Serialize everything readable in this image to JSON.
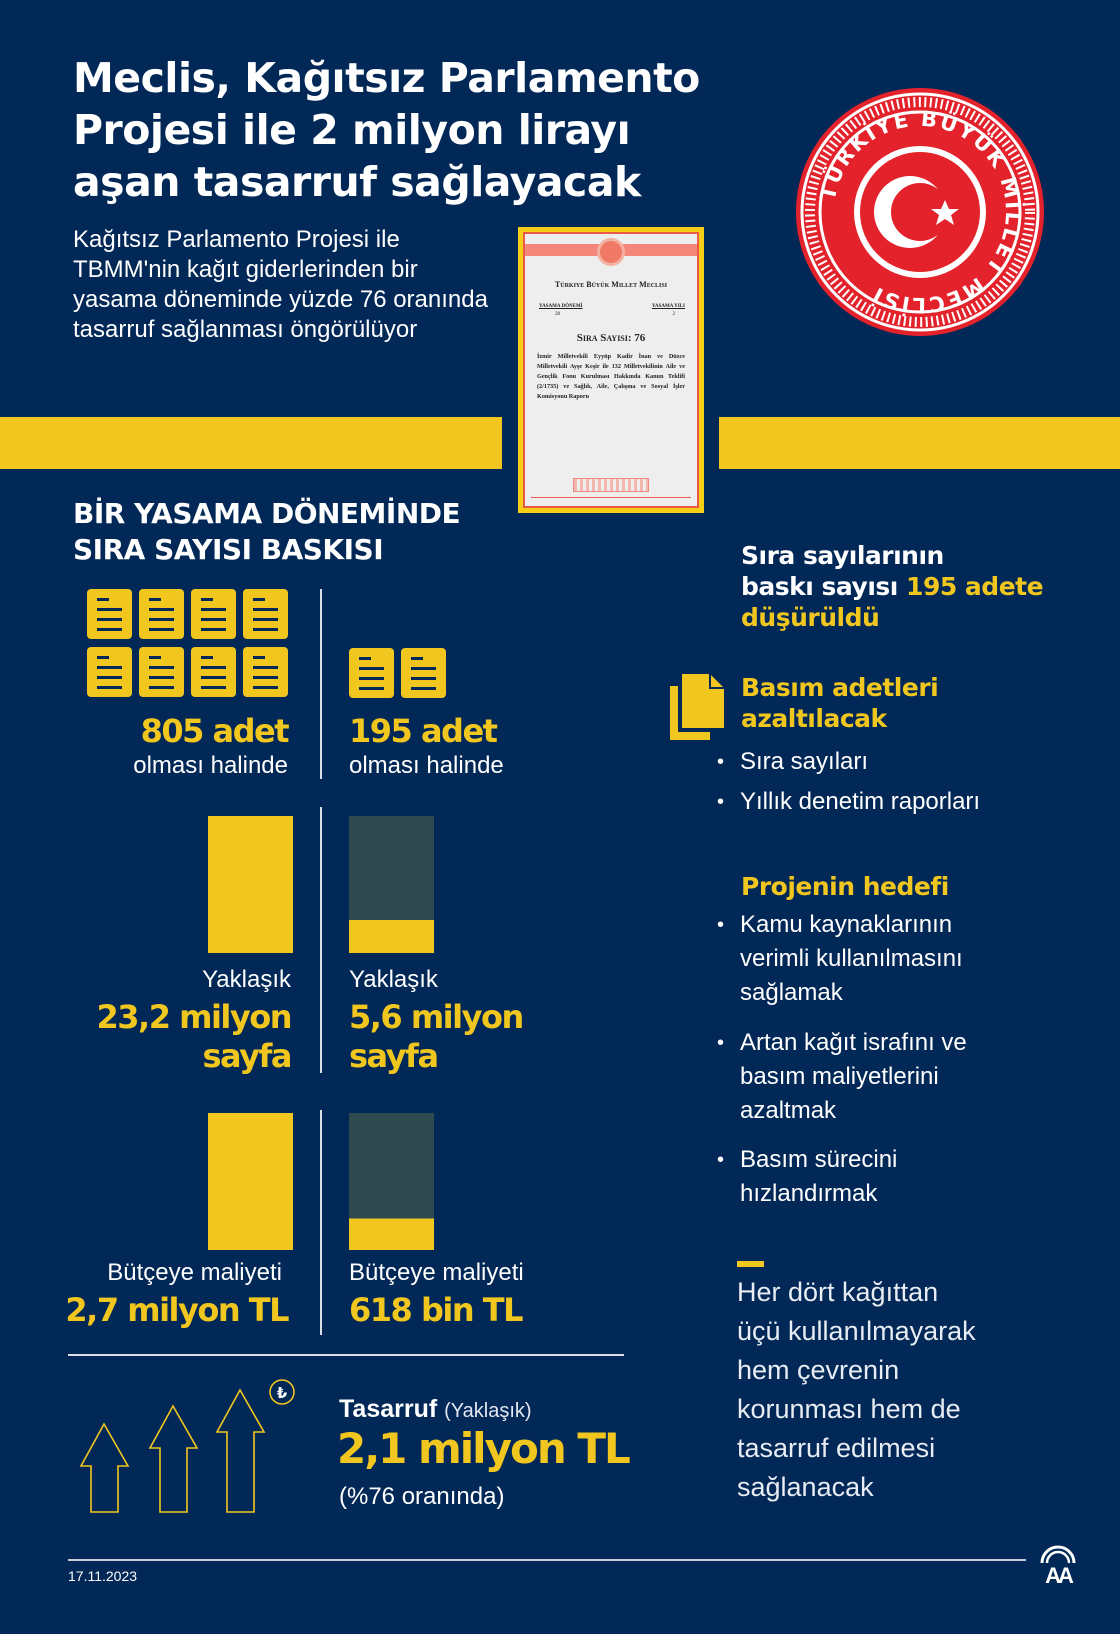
{
  "header": {
    "title": "Meclis, Kağıtsız Parlamento Projesi ile 2 milyon lirayı aşan tasarruf sağlayacak",
    "subtitle": "Kağıtsız Parlamento Projesi ile TBMM'nin kağıt giderlerinden bir yasama döneminde yüzde 76 oranında tasarruf sağlanması öngörülüyor"
  },
  "seal": {
    "text": "TÜRKİYE BÜYÜK MİLLET MECLİSİ",
    "icon": "crescent-star-seal"
  },
  "document": {
    "institution": "Türkiye Büyük Millet Meclisi",
    "term_label": "YASAMA DÖNEMİ",
    "term_value": "28",
    "year_label": "YASAMA YILI",
    "year_value": "2",
    "number": "Sıra Sayısı: 76",
    "body": "İzmir Milletvekili Eyyüp Kadir İnan ve Düzce Milletvekili Ayşe Keşir ile 132 Milletvekilinin Aile ve Gençlik Fonu Kurulması Hakkında Kanun Teklifi (2/1735) ve Sağlık, Aile, Çalışma ve Sosyal İşler Komisyonu Raporu"
  },
  "section": {
    "heading_line1": "BİR YASAMA DÖNEMİNDE",
    "heading_line2": "SIRA SAYISI BASKISI",
    "before": {
      "count": "805 adet",
      "count_note": "olması halinde",
      "pages_prefix": "Yaklaşık",
      "pages_line1": "23,2 milyon",
      "pages_line2": "sayfa",
      "cost_label": "Bütçeye maliyeti",
      "cost_value": "2,7 milyon TL",
      "doc_icons": 8,
      "pages_fill": 1.0,
      "cost_fill": 1.0
    },
    "after": {
      "count": "195 adet",
      "count_note": "olması halinde",
      "pages_prefix": "Yaklaşık",
      "pages_line1": "5,6 milyon",
      "pages_line2": "sayfa",
      "cost_label": "Bütçeye maliyeti",
      "cost_value": "618 bin TL",
      "doc_icons": 2,
      "pages_fill": 0.24,
      "cost_fill": 0.23
    },
    "savings": {
      "label": "Tasarruf",
      "qualifier": "(Yaklaşık)",
      "value": "2,1 milyon TL",
      "note": "(%76 oranında)",
      "icon": "lira-icon"
    }
  },
  "right": {
    "headline_a": "Sıra sayılarının",
    "headline_b": "baskı sayısı ",
    "headline_c": "195 adete",
    "headline_d": "düşürüldü",
    "reduce_title_1": "Basım adetleri",
    "reduce_title_2": "azaltılacak",
    "reduce_items": [
      "Sıra sayıları",
      "Yıllık denetim raporları"
    ],
    "goal_title": "Projenin hedefi",
    "goals": [
      [
        "Kamu kaynaklarının",
        "verimli kullanılmasını",
        "sağlamak"
      ],
      [
        "Artan kağıt israfını ve",
        "basım maliyetlerini",
        "azaltmak"
      ],
      [
        "Basım sürecini",
        "hızlandırmak"
      ]
    ],
    "quote": "Her dört kağıttan\nüçü kullanılmayarak\nhem çevrenin\nkorunması hem de\ntasarruf edilmesi\nsağlanacak"
  },
  "footer": {
    "date": "17.11.2023",
    "logo": "AA"
  },
  "colors": {
    "background": "#012856",
    "accent": "#f1c71f",
    "dark_bar": "#2f4a4e",
    "seal_red": "#e3222b"
  }
}
